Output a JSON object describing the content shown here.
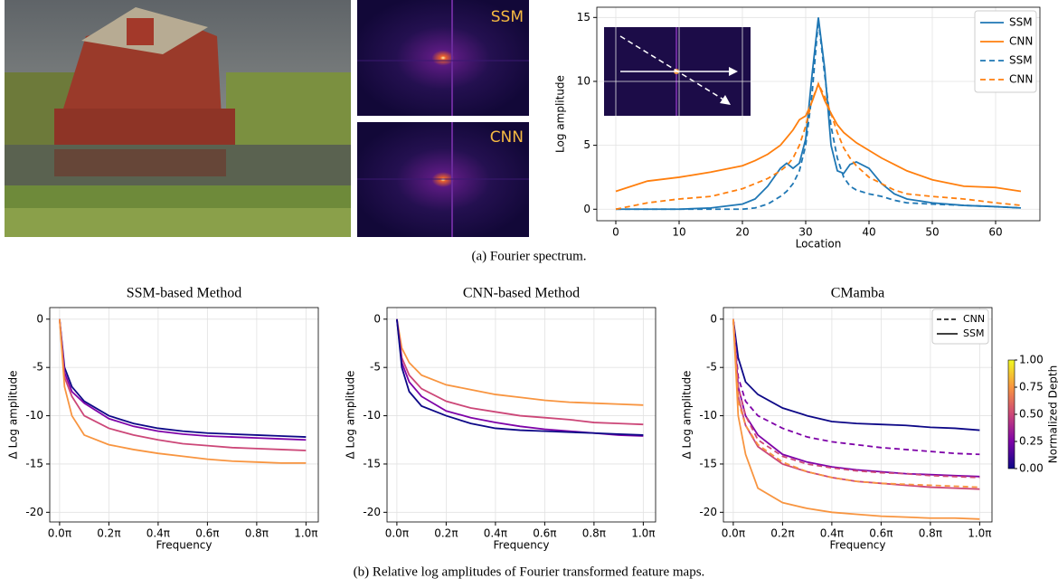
{
  "spectra": [
    "SSM",
    "CNN"
  ],
  "captions": [
    "(a) Fourier spectrum.",
    "(b) Relative log amplitudes of Fourier transformed feature maps."
  ],
  "chart_data": [
    {
      "type": "line",
      "xlabel": "Location",
      "ylabel": "Log amplitude",
      "x": [
        0,
        5,
        10,
        15,
        20,
        22,
        24,
        26,
        27,
        28,
        29,
        30,
        31,
        32,
        33,
        34,
        35,
        36,
        37,
        38,
        40,
        42,
        44,
        46,
        50,
        55,
        60,
        64
      ],
      "xlim": [
        -3,
        67
      ],
      "xticks": [
        0,
        10,
        20,
        30,
        40,
        50,
        60
      ],
      "ylim": [
        -0.9,
        15.8
      ],
      "yticks": [
        0,
        5,
        10,
        15
      ],
      "grid": true,
      "legend": "upper right",
      "series": [
        {
          "name": "SSM",
          "color": "#1f77b4",
          "dashed": false,
          "values": [
            0,
            0,
            0,
            0.1,
            0.4,
            0.8,
            1.8,
            3.2,
            3.6,
            3.2,
            3.6,
            5.5,
            10.5,
            15,
            11,
            5,
            3,
            2.8,
            3.5,
            3.7,
            3.2,
            2,
            1.2,
            0.8,
            0.5,
            0.3,
            0.2,
            0.1
          ]
        },
        {
          "name": "CNN",
          "color": "#ff7f0e",
          "dashed": false,
          "values": [
            1.4,
            2.2,
            2.5,
            2.9,
            3.4,
            3.8,
            4.3,
            5,
            5.6,
            6.2,
            7.0,
            7.3,
            8.4,
            9.8,
            8.5,
            7.5,
            6.6,
            6,
            5.6,
            5.2,
            4.6,
            4.0,
            3.5,
            3.0,
            2.3,
            1.8,
            1.7,
            1.4
          ]
        },
        {
          "name": "SSM",
          "color": "#1f77b4",
          "dashed": true,
          "values": [
            0,
            0,
            0,
            0,
            0,
            0.1,
            0.4,
            1.0,
            1.4,
            2.0,
            3.0,
            5,
            9,
            14.8,
            10.5,
            6.5,
            4,
            2.5,
            1.8,
            1.5,
            1.2,
            1.0,
            0.7,
            0.5,
            0.4,
            0.3,
            0.2,
            0.1
          ]
        },
        {
          "name": "CNN",
          "color": "#ff7f0e",
          "dashed": true,
          "values": [
            0,
            0.5,
            0.8,
            1.0,
            1.6,
            2.0,
            2.4,
            3.0,
            3.4,
            4.0,
            5,
            6.5,
            8.5,
            9.8,
            8.8,
            7.5,
            6,
            4.8,
            4,
            3.4,
            2.5,
            2,
            1.5,
            1.2,
            1,
            0.8,
            0.5,
            0.3
          ]
        }
      ]
    },
    {
      "type": "line",
      "title": "SSM-based Method",
      "xlabel": "Frequency",
      "ylabel": "Δ Log amplitude",
      "x": [
        0,
        0.02,
        0.05,
        0.1,
        0.2,
        0.3,
        0.4,
        0.5,
        0.6,
        0.7,
        0.8,
        0.9,
        1.0
      ],
      "xlim": [
        -0.04,
        1.05
      ],
      "xticks": [
        {
          "value": 0,
          "label": "0.0π"
        },
        {
          "value": 0.2,
          "label": "0.2π"
        },
        {
          "value": 0.4,
          "label": "0.4π"
        },
        {
          "value": 0.6,
          "label": "0.6π"
        },
        {
          "value": 0.8,
          "label": "0.8π"
        },
        {
          "value": 1,
          "label": "1.0π"
        }
      ],
      "ylim": [
        -21,
        1.2
      ],
      "yticks": [
        0,
        -5,
        -10,
        -15,
        -20
      ],
      "grid": true,
      "series": [
        {
          "color": "#0d0887",
          "dashed": false,
          "values": [
            0,
            -5,
            -7,
            -8.5,
            -10,
            -10.8,
            -11.3,
            -11.6,
            -11.8,
            -11.9,
            -12,
            -12.1,
            -12.2
          ]
        },
        {
          "color": "#7e03a8",
          "dashed": false,
          "values": [
            0,
            -5.5,
            -7.5,
            -8.7,
            -10.3,
            -11.1,
            -11.6,
            -11.9,
            -12.1,
            -12.2,
            -12.3,
            -12.4,
            -12.5
          ]
        },
        {
          "color": "#cc4778",
          "dashed": false,
          "values": [
            0,
            -6,
            -8,
            -10,
            -11.3,
            -12,
            -12.5,
            -12.9,
            -13.1,
            -13.3,
            -13.4,
            -13.5,
            -13.6
          ]
        },
        {
          "color": "#f89540",
          "dashed": false,
          "values": [
            0,
            -7,
            -10,
            -12,
            -13,
            -13.5,
            -13.9,
            -14.2,
            -14.5,
            -14.7,
            -14.8,
            -14.9,
            -14.9
          ]
        }
      ]
    },
    {
      "type": "line",
      "title": "CNN-based Method",
      "xlabel": "Frequency",
      "ylabel": "Δ Log amplitude",
      "x": [
        0,
        0.02,
        0.05,
        0.1,
        0.2,
        0.3,
        0.4,
        0.5,
        0.6,
        0.7,
        0.8,
        0.9,
        1.0
      ],
      "xlim": [
        -0.04,
        1.05
      ],
      "xticks": [
        {
          "value": 0,
          "label": "0.0π"
        },
        {
          "value": 0.2,
          "label": "0.2π"
        },
        {
          "value": 0.4,
          "label": "0.4π"
        },
        {
          "value": 0.6,
          "label": "0.6π"
        },
        {
          "value": 0.8,
          "label": "0.8π"
        },
        {
          "value": 1,
          "label": "1.0π"
        }
      ],
      "ylim": [
        -21,
        1.2
      ],
      "yticks": [
        0,
        -5,
        -10,
        -15,
        -20
      ],
      "grid": true,
      "series": [
        {
          "color": "#f89540",
          "dashed": false,
          "values": [
            0,
            -3,
            -4.5,
            -5.8,
            -6.8,
            -7.3,
            -7.8,
            -8.1,
            -8.4,
            -8.6,
            -8.7,
            -8.8,
            -8.9
          ]
        },
        {
          "color": "#cc4778",
          "dashed": false,
          "values": [
            0,
            -4,
            -5.8,
            -7.2,
            -8.5,
            -9.2,
            -9.6,
            -10,
            -10.2,
            -10.4,
            -10.7,
            -10.8,
            -10.9
          ]
        },
        {
          "color": "#7e03a8",
          "dashed": false,
          "values": [
            0,
            -4.5,
            -6.5,
            -8,
            -9.5,
            -10.2,
            -10.7,
            -11.1,
            -11.4,
            -11.6,
            -11.8,
            -12,
            -12.1
          ]
        },
        {
          "color": "#0d0887",
          "dashed": false,
          "values": [
            0,
            -5,
            -7.5,
            -9,
            -10,
            -10.8,
            -11.3,
            -11.5,
            -11.6,
            -11.7,
            -11.8,
            -11.9,
            -12
          ]
        }
      ]
    },
    {
      "type": "line",
      "title": "CMamba",
      "xlabel": "Frequency",
      "ylabel": "Δ Log amplitude",
      "x": [
        0,
        0.02,
        0.05,
        0.1,
        0.2,
        0.3,
        0.4,
        0.5,
        0.6,
        0.7,
        0.8,
        0.9,
        1.0
      ],
      "xlim": [
        -0.04,
        1.05
      ],
      "xticks": [
        {
          "value": 0,
          "label": "0.0π"
        },
        {
          "value": 0.2,
          "label": "0.2π"
        },
        {
          "value": 0.4,
          "label": "0.4π"
        },
        {
          "value": 0.6,
          "label": "0.6π"
        },
        {
          "value": 0.8,
          "label": "0.8π"
        },
        {
          "value": 1,
          "label": "1.0π"
        }
      ],
      "ylim": [
        -21,
        1.2
      ],
      "yticks": [
        0,
        -5,
        -10,
        -15,
        -20
      ],
      "grid": true,
      "style_legend": [
        {
          "label": "CNN",
          "dashed": true
        },
        {
          "label": "SSM",
          "dashed": false
        }
      ],
      "colorbar": {
        "label": "Normalized Depth",
        "colors": [
          "#0d0887",
          "#7e03a8",
          "#cc4778",
          "#f89540",
          "#f0f921"
        ],
        "ticks": [
          {
            "value": 0,
            "label": "0.00"
          },
          {
            "value": 0.25,
            "label": "0.25"
          },
          {
            "value": 0.5,
            "label": "0.50"
          },
          {
            "value": 0.75,
            "label": "0.75"
          },
          {
            "value": 1,
            "label": "1.00"
          }
        ]
      },
      "series": [
        {
          "color": "#0d0887",
          "dashed": false,
          "values": [
            0,
            -4,
            -6.5,
            -7.8,
            -9.2,
            -10,
            -10.6,
            -10.8,
            -10.9,
            -11,
            -11.2,
            -11.3,
            -11.5
          ]
        },
        {
          "color": "#7e03a8",
          "dashed": true,
          "values": [
            0,
            -6,
            -8.5,
            -10,
            -11.3,
            -12.2,
            -12.7,
            -13,
            -13.3,
            -13.5,
            -13.7,
            -13.9,
            -14
          ]
        },
        {
          "color": "#7e03a8",
          "dashed": false,
          "values": [
            0,
            -7,
            -10,
            -12,
            -14,
            -14.8,
            -15.3,
            -15.6,
            -15.8,
            -16,
            -16.1,
            -16.2,
            -16.3
          ]
        },
        {
          "color": "#cc4778",
          "dashed": true,
          "values": [
            0,
            -7,
            -10,
            -12.5,
            -14.2,
            -15,
            -15.4,
            -15.7,
            -15.9,
            -16,
            -16.2,
            -16.3,
            -16.4
          ]
        },
        {
          "color": "#cc4778",
          "dashed": false,
          "values": [
            0,
            -8,
            -11,
            -13.2,
            -15,
            -15.8,
            -16.4,
            -16.8,
            -17,
            -17.2,
            -17.4,
            -17.5,
            -17.6
          ]
        },
        {
          "color": "#f89540",
          "dashed": true,
          "values": [
            0,
            -8.5,
            -11,
            -13,
            -14.8,
            -15.8,
            -16.4,
            -16.8,
            -17,
            -17.1,
            -17.2,
            -17.3,
            -17.4
          ]
        },
        {
          "color": "#f89540",
          "dashed": false,
          "values": [
            0,
            -10,
            -14,
            -17.5,
            -19,
            -19.6,
            -20,
            -20.2,
            -20.4,
            -20.5,
            -20.6,
            -20.6,
            -20.7
          ]
        }
      ]
    }
  ]
}
